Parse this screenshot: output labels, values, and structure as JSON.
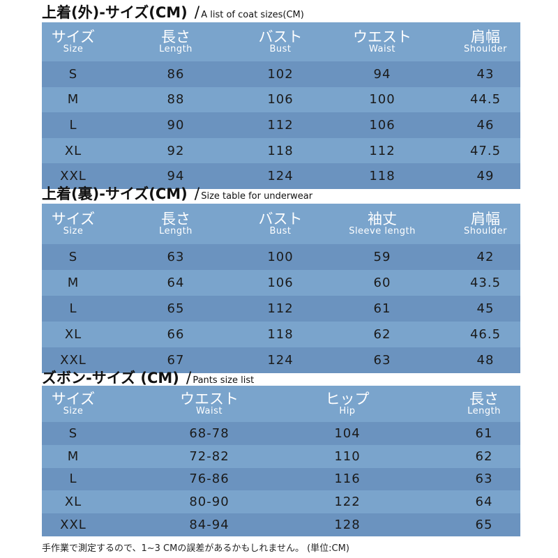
{
  "coat": {
    "title": "上着(外)-サイズ(CM)",
    "subtitle": "A list of coat sizes(CM)",
    "headers": [
      {
        "jp": "サイズ",
        "en": "Size"
      },
      {
        "jp": "長さ",
        "en": "Length"
      },
      {
        "jp": "バスト",
        "en": "Bust"
      },
      {
        "jp": "ウエスト",
        "en": "Waist"
      },
      {
        "jp": "肩幅",
        "en": "Shoulder"
      }
    ],
    "rows": [
      [
        "S",
        "86",
        "102",
        "94",
        "43"
      ],
      [
        "M",
        "88",
        "106",
        "100",
        "44.5"
      ],
      [
        "L",
        "90",
        "112",
        "106",
        "46"
      ],
      [
        "XL",
        "92",
        "118",
        "112",
        "47.5"
      ],
      [
        "XXL",
        "94",
        "124",
        "118",
        "49"
      ]
    ]
  },
  "underwear": {
    "title": "上着(裏)-サイズ(CM)",
    "subtitle": "Size table for underwear",
    "headers": [
      {
        "jp": "サイズ",
        "en": "Size"
      },
      {
        "jp": "長さ",
        "en": "Length"
      },
      {
        "jp": "バスト",
        "en": "Bust"
      },
      {
        "jp": "袖丈",
        "en": "Sleeve length"
      },
      {
        "jp": "肩幅",
        "en": "Shoulder"
      }
    ],
    "rows": [
      [
        "S",
        "63",
        "100",
        "59",
        "42"
      ],
      [
        "M",
        "64",
        "106",
        "60",
        "43.5"
      ],
      [
        "L",
        "65",
        "112",
        "61",
        "45"
      ],
      [
        "XL",
        "66",
        "118",
        "62",
        "46.5"
      ],
      [
        "XXL",
        "67",
        "124",
        "63",
        "48"
      ]
    ]
  },
  "pants": {
    "title": "ズボン-サイズ (CM)",
    "subtitle": "Pants size list",
    "headers": [
      {
        "jp": "サイズ",
        "en": "Size"
      },
      {
        "jp": "ウエスト",
        "en": "Waist"
      },
      {
        "jp": "ヒップ",
        "en": "Hip"
      },
      {
        "jp": "長さ",
        "en": "Length"
      }
    ],
    "rows": [
      [
        "S",
        "68-78",
        "104",
        "61"
      ],
      [
        "M",
        "72-82",
        "110",
        "62"
      ],
      [
        "L",
        "76-86",
        "116",
        "63"
      ],
      [
        "XL",
        "80-90",
        "122",
        "64"
      ],
      [
        "XXL",
        "84-94",
        "128",
        "65"
      ]
    ]
  },
  "footnote": "手作業で測定するので、1~3 CMの誤差があるかもしれません。 (単位:CM)"
}
